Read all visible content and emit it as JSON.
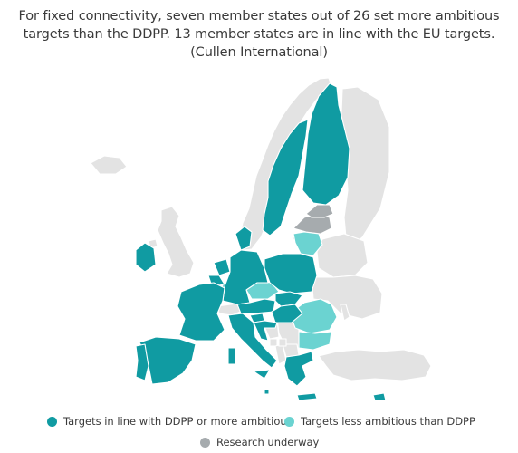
{
  "title": {
    "line1": "For fixed connectivity, seven member states out of 26 set more ambitious",
    "line2": "targets than the DDPP. 13 member states are in line with the EU targets.",
    "line3": "(Cullen International)"
  },
  "colors": {
    "in_line": "#109ba2",
    "less_ambitious": "#6bd3d1",
    "research": "#a6abae",
    "non_eu": "#e3e3e3",
    "border": "#ffffff"
  },
  "legend": {
    "in_line": "Targets in line with DDPP or more ambitious",
    "less_ambitious": "Targets less ambitious than DDPP",
    "research": "Research underway"
  }
}
